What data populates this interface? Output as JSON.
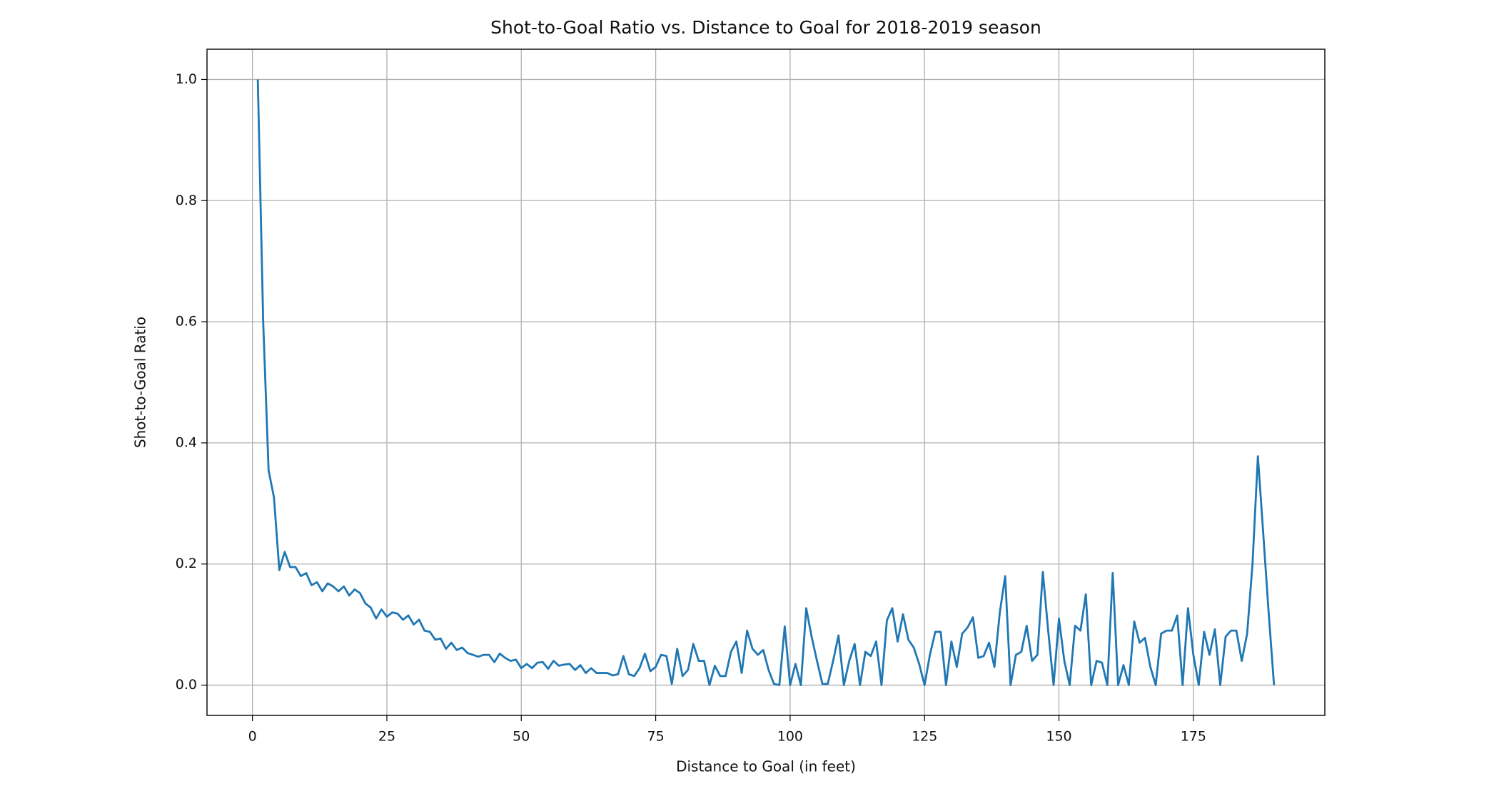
{
  "chart_data": {
    "type": "line",
    "title": "Shot-to-Goal Ratio vs. Distance to Goal for 2018-2019 season",
    "xlabel": "Distance to Goal (in feet)",
    "ylabel": "Shot-to-Goal Ratio",
    "color": "#1f77b4",
    "grid": true,
    "xlim": [
      -8.45,
      199.45
    ],
    "ylim": [
      -0.05,
      1.05
    ],
    "xticks": [
      0,
      25,
      50,
      75,
      100,
      125,
      150,
      175
    ],
    "yticks": [
      {
        "value": 0,
        "label": "0.0"
      },
      0.2,
      0.4,
      0.6,
      0.8,
      {
        "value": 1,
        "label": "1.0"
      }
    ],
    "x": [
      1,
      2,
      3,
      4,
      5,
      6,
      7,
      8,
      9,
      10,
      11,
      12,
      13,
      14,
      15,
      16,
      17,
      18,
      19,
      20,
      21,
      22,
      23,
      24,
      25,
      26,
      27,
      28,
      29,
      30,
      31,
      32,
      33,
      34,
      35,
      36,
      37,
      38,
      39,
      40,
      41,
      42,
      43,
      44,
      45,
      46,
      47,
      48,
      49,
      50,
      51,
      52,
      53,
      54,
      55,
      56,
      57,
      58,
      59,
      60,
      61,
      62,
      63,
      64,
      65,
      66,
      67,
      68,
      69,
      70,
      71,
      72,
      73,
      74,
      75,
      76,
      77,
      78,
      79,
      80,
      81,
      82,
      83,
      84,
      85,
      86,
      87,
      88,
      89,
      90,
      91,
      92,
      93,
      94,
      95,
      96,
      97,
      98,
      99,
      100,
      101,
      102,
      103,
      104,
      105,
      106,
      107,
      108,
      109,
      110,
      111,
      112,
      113,
      114,
      115,
      116,
      117,
      118,
      119,
      120,
      121,
      122,
      123,
      124,
      125,
      126,
      127,
      128,
      129,
      130,
      131,
      132,
      133,
      134,
      135,
      136,
      137,
      138,
      139,
      140,
      141,
      142,
      143,
      144,
      145,
      146,
      147,
      148,
      149,
      150,
      151,
      152,
      153,
      154,
      155,
      156,
      157,
      158,
      159,
      160,
      161,
      162,
      163,
      164,
      165,
      166,
      167,
      168,
      169,
      170,
      171,
      172,
      173,
      174,
      175,
      176,
      177,
      178,
      179,
      180,
      181,
      182,
      183,
      184,
      185,
      186,
      187,
      188,
      189,
      190
    ],
    "values": [
      1.0,
      0.6,
      0.355,
      0.31,
      0.19,
      0.22,
      0.195,
      0.195,
      0.18,
      0.185,
      0.165,
      0.17,
      0.155,
      0.168,
      0.163,
      0.155,
      0.163,
      0.148,
      0.158,
      0.152,
      0.135,
      0.128,
      0.11,
      0.125,
      0.113,
      0.12,
      0.118,
      0.108,
      0.115,
      0.1,
      0.108,
      0.09,
      0.088,
      0.075,
      0.077,
      0.06,
      0.07,
      0.058,
      0.062,
      0.053,
      0.05,
      0.047,
      0.05,
      0.05,
      0.038,
      0.052,
      0.045,
      0.04,
      0.042,
      0.028,
      0.035,
      0.028,
      0.037,
      0.038,
      0.027,
      0.04,
      0.032,
      0.034,
      0.035,
      0.025,
      0.033,
      0.02,
      0.028,
      0.02,
      0.02,
      0.02,
      0.016,
      0.018,
      0.048,
      0.018,
      0.015,
      0.028,
      0.052,
      0.023,
      0.03,
      0.05,
      0.048,
      0.002,
      0.06,
      0.015,
      0.025,
      0.068,
      0.04,
      0.04,
      0.0,
      0.032,
      0.015,
      0.015,
      0.055,
      0.072,
      0.02,
      0.09,
      0.06,
      0.05,
      0.058,
      0.025,
      0.002,
      0.0,
      0.097,
      0.0,
      0.035,
      0.0,
      0.127,
      0.08,
      0.04,
      0.002,
      0.002,
      0.04,
      0.082,
      0.0,
      0.04,
      0.068,
      0.0,
      0.055,
      0.048,
      0.072,
      0.0,
      0.107,
      0.127,
      0.072,
      0.117,
      0.075,
      0.062,
      0.035,
      0.0,
      0.05,
      0.088,
      0.088,
      0.0,
      0.072,
      0.03,
      0.085,
      0.095,
      0.112,
      0.045,
      0.048,
      0.07,
      0.03,
      0.12,
      0.18,
      0.0,
      0.05,
      0.055,
      0.098,
      0.04,
      0.05,
      0.187,
      0.09,
      0.0,
      0.11,
      0.04,
      0.0,
      0.098,
      0.09,
      0.15,
      0.0,
      0.04,
      0.037,
      0.0,
      0.185,
      0.0,
      0.033,
      0.0,
      0.105,
      0.07,
      0.078,
      0.03,
      0.0,
      0.085,
      0.09,
      0.09,
      0.115,
      0.0,
      0.127,
      0.05,
      0.0,
      0.088,
      0.05,
      0.092,
      0.0,
      0.08,
      0.09,
      0.09,
      0.04,
      0.085,
      0.2,
      0.378,
      0.25,
      0.12,
      0.0
    ]
  }
}
